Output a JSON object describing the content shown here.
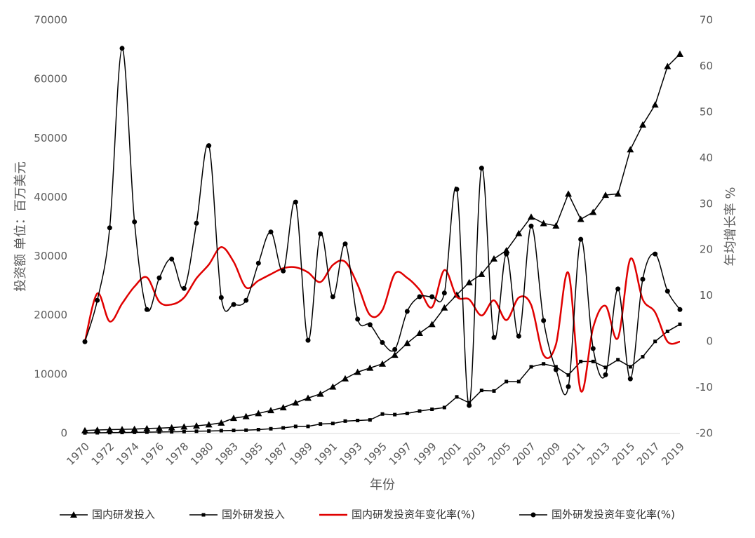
{
  "chart_data": {
    "type": "line",
    "categories": [
      "1970",
      null,
      "1972",
      null,
      "1974",
      null,
      "1976",
      null,
      "1978",
      null,
      "1980",
      null,
      "1983",
      null,
      "1985",
      null,
      "1987",
      null,
      "1989",
      null,
      "1991",
      null,
      "1993",
      null,
      "1995",
      null,
      "1997",
      null,
      "1999",
      null,
      "2001",
      null,
      "2003",
      null,
      "2005",
      null,
      "2007",
      null,
      "2009",
      null,
      "2011",
      null,
      "2013",
      null,
      "2015",
      null,
      "2017",
      null,
      "2019"
    ],
    "x_label": "年份",
    "y_label": "投资额 单位：百万美元",
    "y2_label": "年均增长率 %",
    "ylim": [
      0,
      70000
    ],
    "yticks": [
      0,
      10000,
      20000,
      30000,
      40000,
      50000,
      60000,
      70000
    ],
    "y2lim": [
      -20,
      70
    ],
    "y2ticks": [
      -20,
      -10,
      0,
      10,
      20,
      30,
      40,
      50,
      60,
      70
    ],
    "legend": "bottom",
    "series": [
      {
        "name": "国内研发投入",
        "color": "#000000",
        "marker": "triangle",
        "smooth": false,
        "values": [
          500,
          600,
          650,
          700,
          750,
          850,
          900,
          1000,
          1150,
          1300,
          1500,
          1800,
          2600,
          2900,
          3400,
          3900,
          4400,
          5200,
          6000,
          6700,
          7900,
          9300,
          10400,
          11100,
          11800,
          13300,
          15300,
          17000,
          18500,
          21300,
          23500,
          25600,
          27000,
          29600,
          31000,
          33900,
          36700,
          35600,
          35200,
          40600,
          36300,
          37500,
          40400,
          40600,
          48100,
          52300,
          55700,
          62200,
          64300
        ]
      },
      {
        "name": "国外研发投入",
        "color": "#000000",
        "marker": "square",
        "smooth": false,
        "values": [
          100,
          120,
          150,
          170,
          200,
          220,
          250,
          280,
          320,
          380,
          420,
          480,
          520,
          560,
          650,
          800,
          950,
          1200,
          1200,
          1600,
          1700,
          2100,
          2200,
          2300,
          3300,
          3200,
          3400,
          3800,
          4100,
          4400,
          6200,
          5200,
          7300,
          7200,
          8800,
          8800,
          11300,
          11800,
          11300,
          9900,
          12200,
          12200,
          11200,
          12500,
          11300,
          13000,
          15600,
          17300,
          18500
        ]
      },
      {
        "name": "国内研发投资年变化率(%)",
        "color": "#e00000",
        "marker": "none",
        "smooth": true,
        "axis": "y2",
        "values": [
          0,
          10.5,
          4.4,
          8.3,
          12,
          14,
          8.7,
          8.1,
          9.6,
          13.8,
          16.8,
          20.6,
          17.4,
          11.8,
          13.3,
          14.7,
          16,
          16.2,
          15.1,
          13,
          16.7,
          17.4,
          12.4,
          5.8,
          6.9,
          14.8,
          13.9,
          11.3,
          7.5,
          15.6,
          9.8,
          9.2,
          5.7,
          9,
          4.7,
          9.6,
          8,
          -2.9,
          -0.6,
          15,
          -10.7,
          3.1,
          7.8,
          0.8,
          18,
          9.2,
          6.4,
          0,
          0
        ]
      },
      {
        "name": "国外研发投资年变化率(%)",
        "color": "#000000",
        "marker": "circle",
        "smooth": true,
        "axis": "y2",
        "values": [
          0,
          9,
          24.8,
          63.9,
          26.1,
          7,
          13.9,
          18,
          11.6,
          25.8,
          42.7,
          9.6,
          8.1,
          9,
          17.1,
          23.9,
          15.4,
          30.4,
          0.3,
          23.5,
          9.8,
          21.3,
          4.9,
          3.7,
          -0.2,
          -1.7,
          6.6,
          9.8,
          9.8,
          10.6,
          33.2,
          -13.9,
          37.8,
          0.9,
          19.1,
          1.2,
          25.2,
          4.6,
          -6.1,
          -9.8,
          22.3,
          -1.5,
          -7.2,
          11.5,
          -8.1,
          13.6,
          19.1,
          11,
          7
        ]
      }
    ]
  }
}
